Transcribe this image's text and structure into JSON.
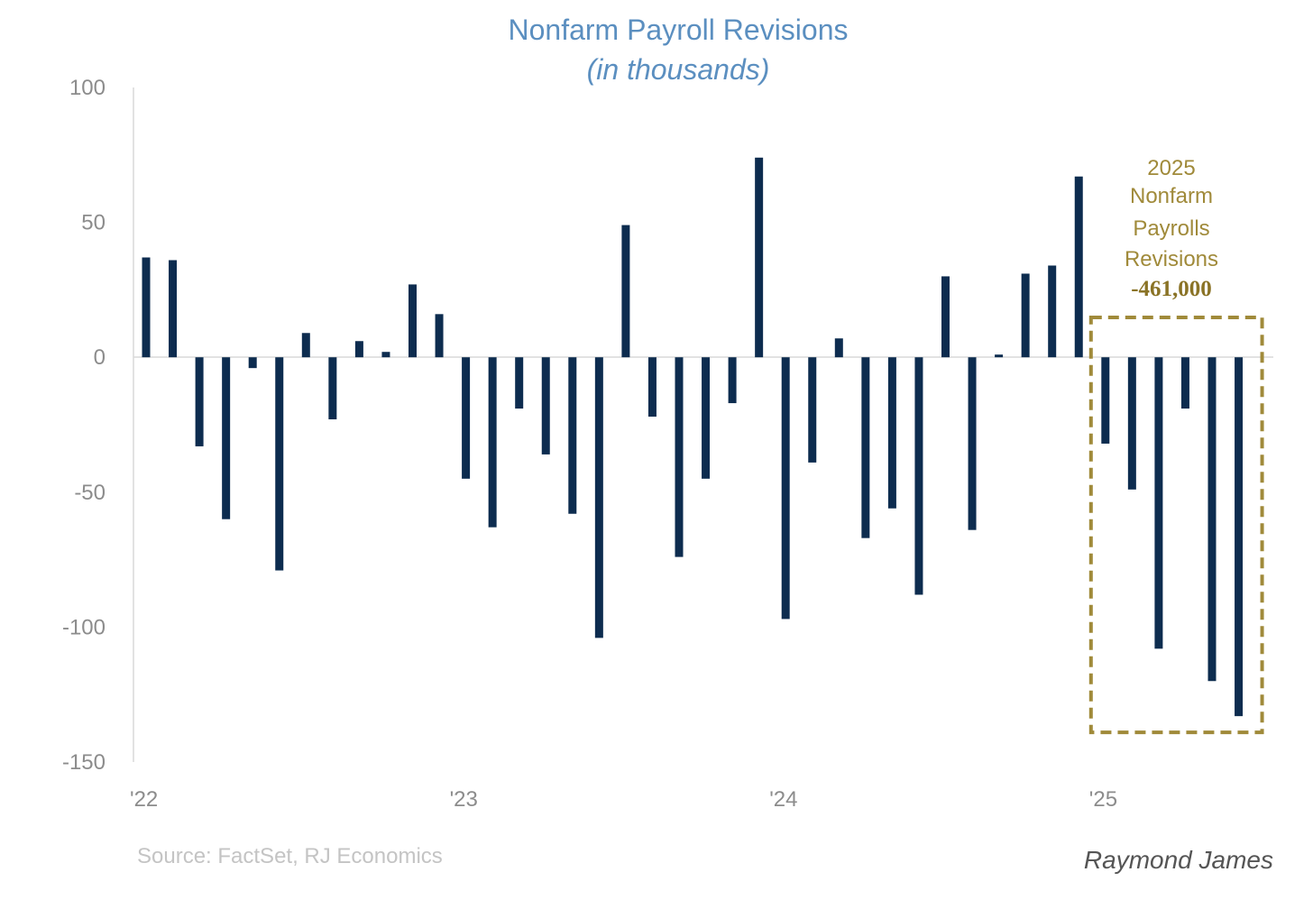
{
  "chart_data": {
    "type": "bar",
    "title": "Nonfarm Payroll Revisions",
    "subtitle": "(in thousands)",
    "xlabel": "",
    "ylabel": "",
    "ylim": [
      -150,
      100
    ],
    "yticks": [
      100,
      50,
      0,
      -50,
      -100,
      -150
    ],
    "ytick_labels": [
      "100",
      "50",
      "0",
      "-50",
      "-100",
      "-150"
    ],
    "xtick_labels": [
      {
        "label": "'22",
        "index": 0
      },
      {
        "label": "'23",
        "index": 12
      },
      {
        "label": "'24",
        "index": 24
      },
      {
        "label": "'25",
        "index": 36
      }
    ],
    "bar_color": "#0d2c4f",
    "values": [
      37,
      36,
      -33,
      -60,
      -4,
      -79,
      9,
      -23,
      6,
      2,
      27,
      16,
      -45,
      -63,
      -19,
      -36,
      -58,
      -104,
      49,
      -22,
      -74,
      -45,
      -17,
      74,
      -97,
      -39,
      7,
      -67,
      -56,
      -88,
      30,
      -64,
      1,
      31,
      34,
      67,
      -32,
      -49,
      -108,
      -19,
      -120,
      -133
    ],
    "highlight": {
      "start_index": 36,
      "end_index": 41,
      "color": "#a08a3a",
      "lines": [
        "2025",
        "Nonfarm",
        "Payrolls",
        "Revisions"
      ],
      "total": "-461,000"
    }
  },
  "source": "Source: FactSet, RJ Economics",
  "brand": "Raymond James",
  "colors": {
    "title": "#5b8fc0",
    "axis": "#d9d9d9",
    "tick_text": "#8c8c8c",
    "highlight": "#a08a3a"
  }
}
